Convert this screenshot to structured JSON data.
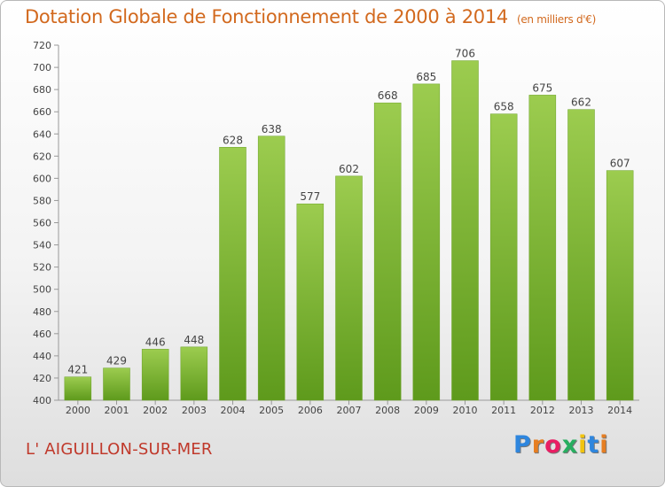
{
  "header": {
    "title": "Dotation Globale de Fonctionnement de 2000 à 2014",
    "unit": "(en milliers d'€)"
  },
  "footer": {
    "commune": "L' AIGUILLON-SUR-MER",
    "logo": "Proxiti",
    "logo_colors": [
      "#2e86de",
      "#e67e22",
      "#e91e63",
      "#27ae60",
      "#f1c40f",
      "#2e86de",
      "#e67e22"
    ]
  },
  "chart_data": {
    "type": "bar",
    "title": "Dotation Globale de Fonctionnement de 2000 à 2014",
    "xlabel": "",
    "ylabel": "",
    "categories": [
      "2000",
      "2001",
      "2002",
      "2003",
      "2004",
      "2005",
      "2006",
      "2007",
      "2008",
      "2009",
      "2010",
      "2011",
      "2012",
      "2013",
      "2014"
    ],
    "values": [
      421,
      429,
      446,
      448,
      628,
      638,
      577,
      602,
      668,
      685,
      706,
      658,
      675,
      662,
      607
    ],
    "ylim": [
      400,
      720
    ],
    "yticks": [
      400,
      420,
      440,
      460,
      480,
      500,
      520,
      540,
      560,
      580,
      600,
      620,
      640,
      660,
      680,
      700,
      720
    ],
    "grid": false,
    "bar_color": "#8bc34a",
    "bar_color_dark": "#5e9a1c"
  }
}
